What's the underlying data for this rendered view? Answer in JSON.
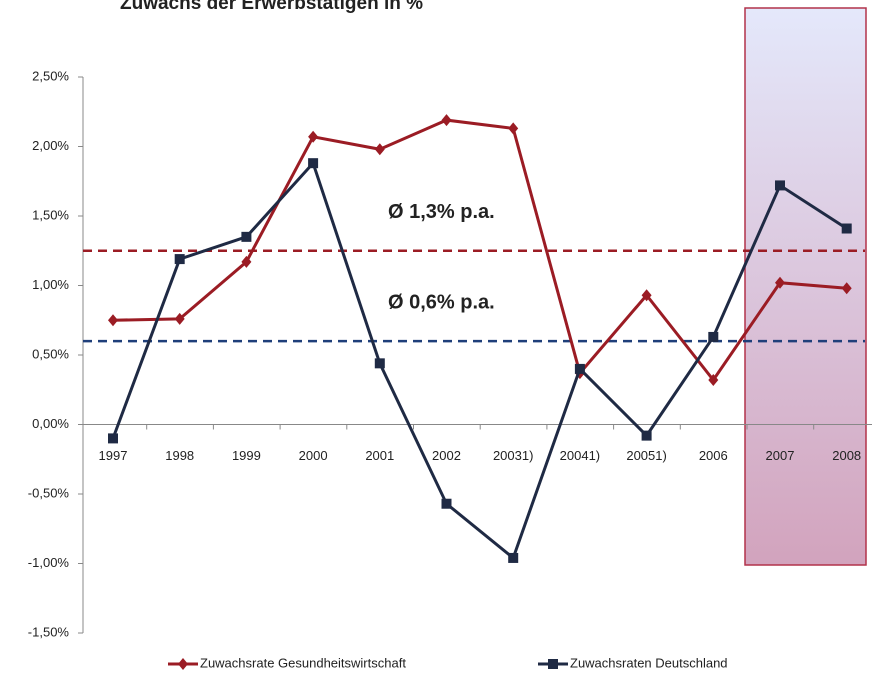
{
  "chart_data": {
    "type": "line",
    "title": "Zuwachs der Erwerbstätigen in %",
    "categories": [
      "1997",
      "1998",
      "1999",
      "2000",
      "2001",
      "2002",
      "20031)",
      "20041)",
      "20051)",
      "2006",
      "2007",
      "2008"
    ],
    "series": [
      {
        "name": "Zuwachsrate Gesundheitswirtschaft",
        "color": "#9b1c24",
        "values": [
          0.75,
          0.76,
          1.17,
          2.07,
          1.98,
          2.19,
          2.13,
          0.37,
          0.93,
          0.32,
          1.02,
          0.98
        ]
      },
      {
        "name": "Zuwachsraten Deutschland",
        "color": "#1f2a44",
        "values": [
          -0.1,
          1.19,
          1.35,
          1.88,
          0.44,
          -0.57,
          -0.96,
          0.4,
          -0.08,
          0.63,
          1.72,
          1.41
        ]
      }
    ],
    "reference_lines": [
      {
        "value": 1.25,
        "label": "Ø 1,3% p.a.",
        "color": "#9b1c24"
      },
      {
        "value": 0.6,
        "label": "Ø 0,6% p.a.",
        "color": "#1f3f7a"
      }
    ],
    "ylim": [
      -1.5,
      2.5
    ],
    "yticks": [
      {
        "value": -1.5,
        "label": "-1,50%"
      },
      {
        "value": -1.0,
        "label": "-1,00%"
      },
      {
        "value": -0.5,
        "label": "-0,50%"
      },
      {
        "value": 0,
        "label": "0,00%"
      },
      {
        "value": 0.5,
        "label": "0,50%"
      },
      {
        "value": 1.0,
        "label": "1,00%"
      },
      {
        "value": 1.5,
        "label": "1,50%"
      },
      {
        "value": 2.0,
        "label": "2,00%"
      },
      {
        "value": 2.5,
        "label": "2,50%"
      }
    ],
    "legend": "bottom"
  }
}
